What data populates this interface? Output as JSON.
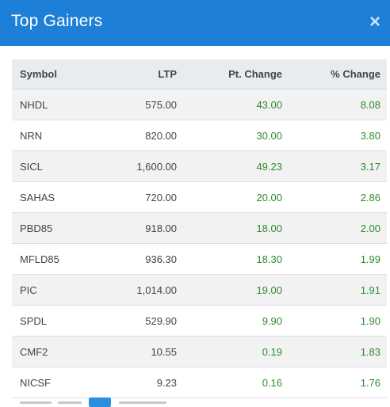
{
  "modal": {
    "title": "Top Gainers",
    "close": "×"
  },
  "table": {
    "headers": {
      "symbol": "Symbol",
      "ltp": "LTP",
      "pt_change": "Pt. Change",
      "pct_change": "% Change"
    },
    "rows": [
      {
        "symbol": "NHDL",
        "ltp": "575.00",
        "pt_change": "43.00",
        "pct_change": "8.08"
      },
      {
        "symbol": "NRN",
        "ltp": "820.00",
        "pt_change": "30.00",
        "pct_change": "3.80"
      },
      {
        "symbol": "SICL",
        "ltp": "1,600.00",
        "pt_change": "49.23",
        "pct_change": "3.17"
      },
      {
        "symbol": "SAHAS",
        "ltp": "720.00",
        "pt_change": "20.00",
        "pct_change": "2.86"
      },
      {
        "symbol": "PBD85",
        "ltp": "918.00",
        "pt_change": "18.00",
        "pct_change": "2.00"
      },
      {
        "symbol": "MFLD85",
        "ltp": "936.30",
        "pt_change": "18.30",
        "pct_change": "1.99"
      },
      {
        "symbol": "PIC",
        "ltp": "1,014.00",
        "pt_change": "19.00",
        "pct_change": "1.91"
      },
      {
        "symbol": "SPDL",
        "ltp": "529.90",
        "pt_change": "9.90",
        "pct_change": "1.90"
      },
      {
        "symbol": "CMF2",
        "ltp": "10.55",
        "pt_change": "0.19",
        "pct_change": "1.83"
      },
      {
        "symbol": "NICSF",
        "ltp": "9.23",
        "pt_change": "0.16",
        "pct_change": "1.76"
      }
    ]
  },
  "colors": {
    "header_bg": "#1e7fd7",
    "positive": "#2e8b2e",
    "active_page": "#2b8fe0"
  }
}
